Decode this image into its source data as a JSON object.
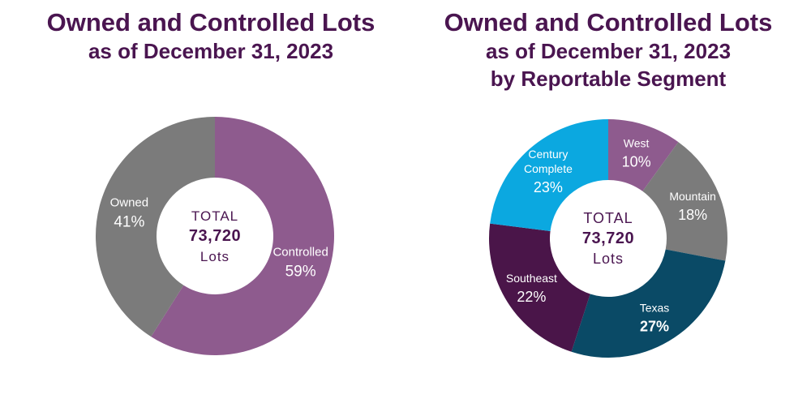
{
  "chart_data": [
    {
      "type": "pie",
      "donut": true,
      "title": "Owned and Controlled Lots",
      "subtitle": "as of December 31, 2023",
      "center": {
        "line1": "TOTAL",
        "line2": "73,720",
        "line3": "Lots"
      },
      "slices": [
        {
          "name": "Controlled",
          "value": 59,
          "label": "59%",
          "color": "#8e5b8e"
        },
        {
          "name": "Owned",
          "value": 41,
          "label": "41%",
          "color": "#7b7b7b"
        }
      ]
    },
    {
      "type": "pie",
      "donut": true,
      "title": "Owned and Controlled Lots",
      "subtitle": "as of December 31, 2023",
      "subtitle2": "by Reportable Segment",
      "center": {
        "line1": "TOTAL",
        "line2": "73,720",
        "line3": "Lots"
      },
      "slices": [
        {
          "name": "West",
          "value": 10,
          "label": "10%",
          "color": "#8e5b8e"
        },
        {
          "name": "Mountain",
          "value": 18,
          "label": "18%",
          "color": "#7b7b7b"
        },
        {
          "name": "Texas",
          "value": 27,
          "label": "27%",
          "color": "#0a4a66"
        },
        {
          "name": "Southeast",
          "value": 22,
          "label": "22%",
          "color": "#4a1549"
        },
        {
          "name": "Century Complete",
          "value": 23,
          "label": "23%",
          "color": "#0ba8e0"
        }
      ]
    }
  ]
}
